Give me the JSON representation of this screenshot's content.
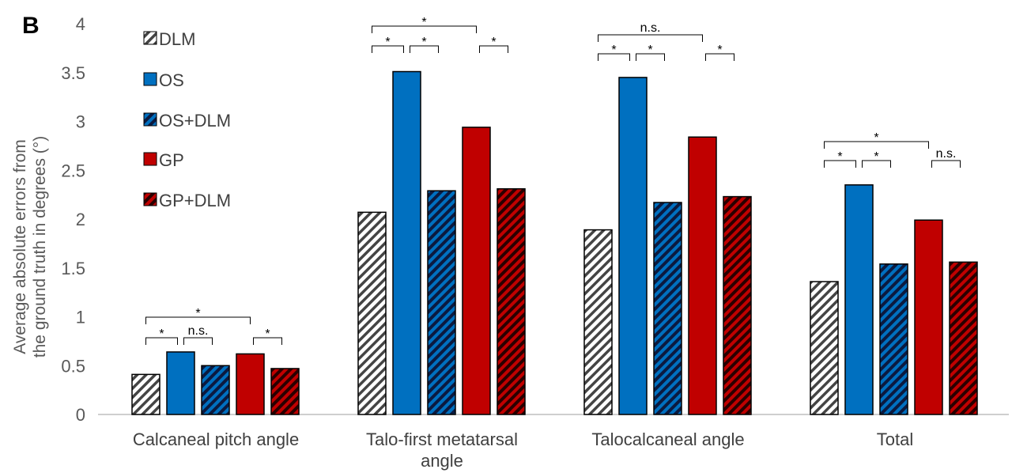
{
  "chart_data": {
    "type": "bar",
    "panel_label": "B",
    "ylabel_line1": "Average absolute errors from",
    "ylabel_line2": "the ground truth in degrees (°)",
    "ylim": [
      0,
      4
    ],
    "yticks": [
      "0",
      "0.5",
      "1",
      "1.5",
      "2",
      "2.5",
      "3",
      "3.5",
      "4"
    ],
    "categories": [
      {
        "line1": "Calcaneal pitch angle",
        "line2": ""
      },
      {
        "line1": "Talo-first metatarsal",
        "line2": "angle"
      },
      {
        "line1": "Talocalcaneal angle",
        "line2": ""
      },
      {
        "line1": "Total",
        "line2": ""
      }
    ],
    "series": [
      {
        "name": "DLM",
        "values": [
          0.41,
          2.07,
          1.89,
          1.36
        ],
        "color": "#ffffff",
        "pattern": "stripe",
        "stripe_color": "#444444"
      },
      {
        "name": "OS",
        "values": [
          0.64,
          3.51,
          3.45,
          2.35
        ],
        "color": "#0070C0",
        "pattern": "solid"
      },
      {
        "name": "OS+DLM",
        "values": [
          0.5,
          2.29,
          2.17,
          1.54
        ],
        "color": "#0070C0",
        "pattern": "stripe",
        "stripe_color": "#0070C0"
      },
      {
        "name": "GP",
        "values": [
          0.62,
          2.94,
          2.84,
          1.99
        ],
        "color": "#C00000",
        "pattern": "solid"
      },
      {
        "name": "GP+DLM",
        "values": [
          0.47,
          2.31,
          2.23,
          1.56
        ],
        "color": "#C00000",
        "pattern": "stripe",
        "stripe_color": "#C00000"
      }
    ],
    "significance": [
      {
        "category": 0,
        "from": 0,
        "to": 1,
        "label": "*",
        "level": 0
      },
      {
        "category": 0,
        "from": 1,
        "to": 2,
        "label": "n.s.",
        "level": 0
      },
      {
        "category": 0,
        "from": 3,
        "to": 4,
        "label": "*",
        "level": 0
      },
      {
        "category": 0,
        "from": 0,
        "to": 3,
        "label": "*",
        "level": 1
      },
      {
        "category": 1,
        "from": 0,
        "to": 1,
        "label": "*",
        "level": 0
      },
      {
        "category": 1,
        "from": 1,
        "to": 2,
        "label": "*",
        "level": 0
      },
      {
        "category": 1,
        "from": 3,
        "to": 4,
        "label": "*",
        "level": 0
      },
      {
        "category": 1,
        "from": 0,
        "to": 3,
        "label": "*",
        "level": 1
      },
      {
        "category": 2,
        "from": 0,
        "to": 1,
        "label": "*",
        "level": 0
      },
      {
        "category": 2,
        "from": 1,
        "to": 2,
        "label": "*",
        "level": 0
      },
      {
        "category": 2,
        "from": 3,
        "to": 4,
        "label": "*",
        "level": 0
      },
      {
        "category": 2,
        "from": 0,
        "to": 3,
        "label": "n.s.",
        "level": 1
      },
      {
        "category": 3,
        "from": 0,
        "to": 1,
        "label": "*",
        "level": 0
      },
      {
        "category": 3,
        "from": 1,
        "to": 2,
        "label": "*",
        "level": 0
      },
      {
        "category": 3,
        "from": 3,
        "to": 4,
        "label": "n.s.",
        "level": 0
      },
      {
        "category": 3,
        "from": 0,
        "to": 3,
        "label": "*",
        "level": 1
      }
    ],
    "legend_position": "top-left",
    "grid": false
  }
}
